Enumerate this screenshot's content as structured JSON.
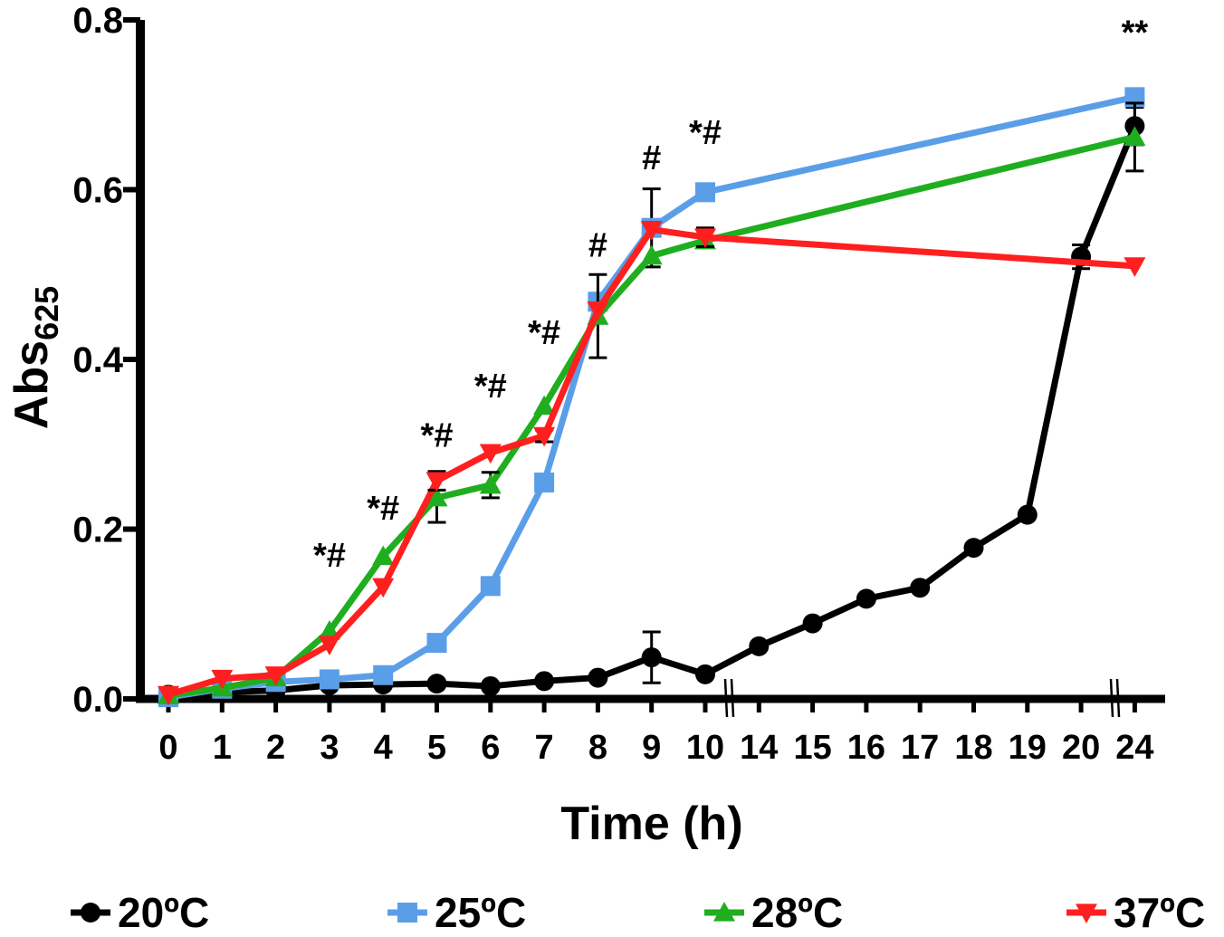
{
  "chart_data": {
    "type": "line",
    "title": "",
    "xlabel": "Time (h)",
    "ylabel_main": "Abs",
    "ylabel_sub": "625",
    "ylim": [
      0,
      0.8
    ],
    "yticks": [
      "0.0",
      "0.2",
      "0.4",
      "0.6",
      "0.8"
    ],
    "yticks_values": [
      0,
      0.2,
      0.4,
      0.6,
      0.8
    ],
    "x": [
      "0",
      "1",
      "2",
      "3",
      "4",
      "5",
      "6",
      "7",
      "8",
      "9",
      "10",
      "14",
      "15",
      "16",
      "17",
      "18",
      "19",
      "20",
      "24"
    ],
    "axis_breaks_after": [
      "10",
      "20"
    ],
    "legend_position": "bottom",
    "series": [
      {
        "name": "20ºC",
        "color": "#000000",
        "marker": "circle",
        "x": [
          "0",
          "1",
          "2",
          "3",
          "4",
          "5",
          "6",
          "7",
          "8",
          "9",
          "10",
          "14",
          "15",
          "16",
          "17",
          "18",
          "19",
          "20",
          "24"
        ],
        "values": [
          0.005,
          0.008,
          0.01,
          0.016,
          0.017,
          0.018,
          0.015,
          0.021,
          0.025,
          0.049,
          0.029,
          0.062,
          0.089,
          0.118,
          0.131,
          0.178,
          0.217,
          0.521,
          0.675
        ],
        "errors": [
          0,
          0,
          0,
          0,
          0,
          0,
          0,
          0,
          0,
          0.03,
          0,
          0,
          0,
          0,
          0,
          0,
          0,
          0.014,
          0.022
        ]
      },
      {
        "name": "25ºC",
        "color": "#5b9ee8",
        "marker": "square",
        "x": [
          "0",
          "1",
          "2",
          "3",
          "4",
          "5",
          "6",
          "7",
          "8",
          "9",
          "10",
          "24"
        ],
        "values": [
          0.002,
          0.012,
          0.02,
          0.023,
          0.028,
          0.066,
          0.133,
          0.255,
          0.468,
          0.555,
          0.597,
          0.709
        ],
        "errors": [
          0,
          0,
          0,
          0,
          0,
          0,
          0,
          0,
          0,
          0.046,
          0,
          0
        ]
      },
      {
        "name": "28ºC",
        "color": "#1fae1f",
        "marker": "triangle-up",
        "x": [
          "0",
          "1",
          "2",
          "3",
          "4",
          "5",
          "6",
          "7",
          "8",
          "9",
          "10",
          "24"
        ],
        "values": [
          0.004,
          0.013,
          0.025,
          0.08,
          0.168,
          0.237,
          0.252,
          0.345,
          0.451,
          0.522,
          0.54,
          0.662
        ],
        "errors": [
          0,
          0,
          0,
          0,
          0,
          0.029,
          0.015,
          0,
          0.049,
          0,
          0,
          0.04
        ]
      },
      {
        "name": "37ºC",
        "color": "#ff1f1f",
        "marker": "triangle-down",
        "x": [
          "0",
          "1",
          "2",
          "3",
          "4",
          "5",
          "6",
          "7",
          "8",
          "9",
          "10",
          "24"
        ],
        "values": [
          0.005,
          0.024,
          0.028,
          0.064,
          0.132,
          0.257,
          0.29,
          0.31,
          0.458,
          0.553,
          0.544,
          0.51
        ],
        "errors": [
          0,
          0,
          0,
          0,
          0,
          0.011,
          0,
          0.007,
          0,
          0,
          0.011,
          0
        ]
      }
    ],
    "annotations": [
      {
        "x": "3",
        "y": 0.156,
        "text": "*#"
      },
      {
        "x": "4",
        "y": 0.211,
        "text": "*#"
      },
      {
        "x": "5",
        "y": 0.297,
        "text": "*#"
      },
      {
        "x": "6",
        "y": 0.355,
        "text": "*#"
      },
      {
        "x": "7",
        "y": 0.418,
        "text": "*#"
      },
      {
        "x": "8",
        "y": 0.521,
        "text": "#"
      },
      {
        "x": "9",
        "y": 0.624,
        "text": "#"
      },
      {
        "x": "10",
        "y": 0.654,
        "text": "*#"
      },
      {
        "x": "24",
        "y": 0.772,
        "text": "**"
      }
    ]
  }
}
